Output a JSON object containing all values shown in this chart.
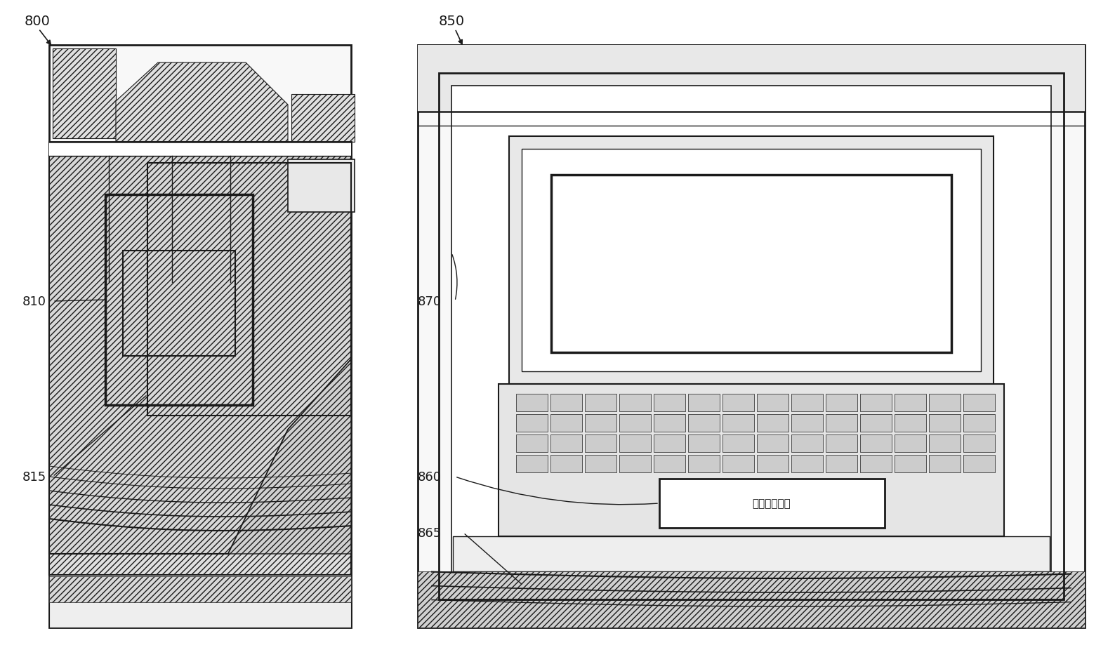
{
  "bg_color": "#ffffff",
  "lc": "#1a1a1a",
  "fig_w": 15.88,
  "fig_h": 9.37,
  "dpi": 100,
  "label_800": "800",
  "label_850": "850",
  "label_810": "810",
  "label_815": "815",
  "label_860": "860",
  "label_865": "865",
  "label_870": "870",
  "detected_screen_text": "检测到的屏幕"
}
